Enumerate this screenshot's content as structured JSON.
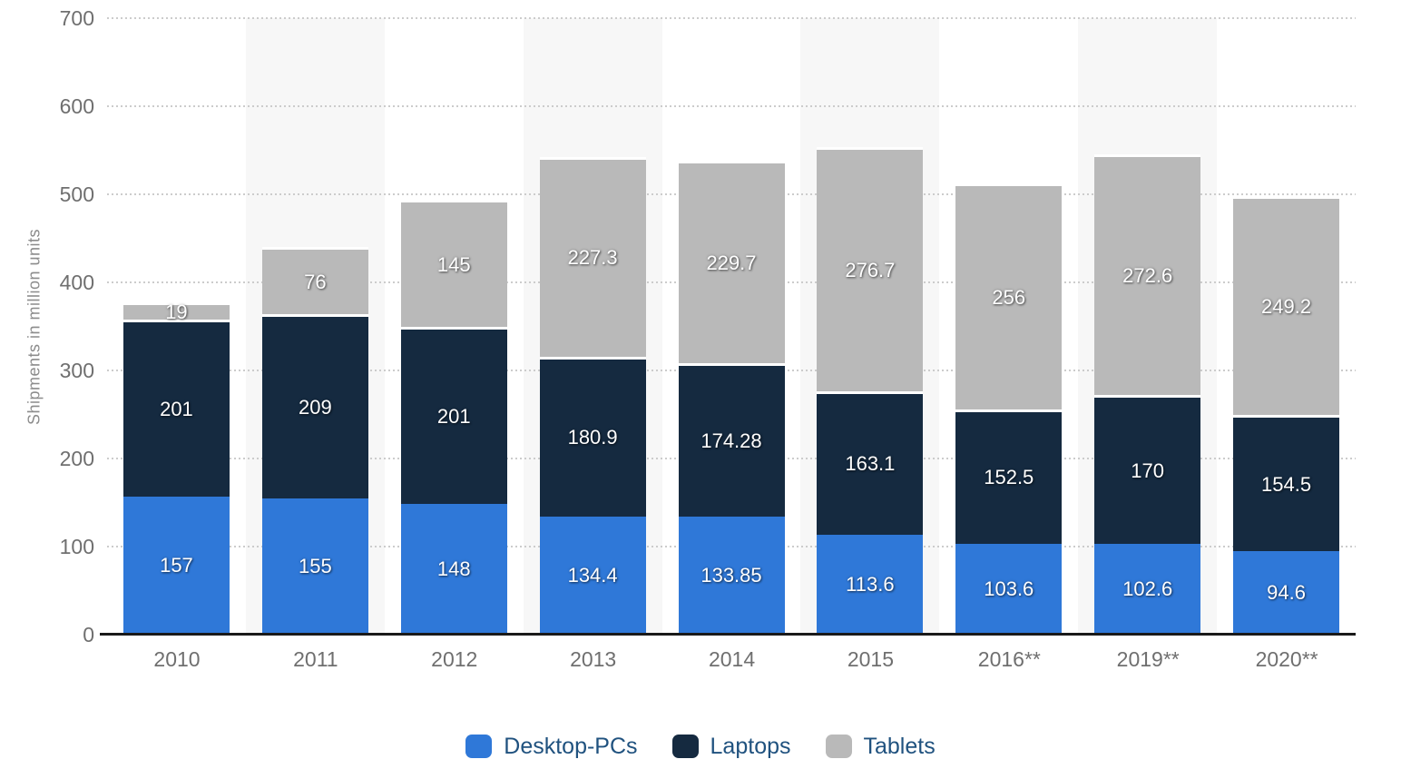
{
  "chart_data": {
    "type": "bar",
    "stacked": true,
    "title": "",
    "xlabel": "",
    "ylabel": "Shipments in million units",
    "ylim": [
      0,
      700
    ],
    "yticks": [
      0,
      100,
      200,
      300,
      400,
      500,
      600,
      700
    ],
    "grid": "horizontal-dotted",
    "legend_position": "bottom",
    "categories": [
      "2010",
      "2011",
      "2012",
      "2013",
      "2014",
      "2015",
      "2016**",
      "2019**",
      "2020**"
    ],
    "banded_category_indexes": [
      1,
      3,
      5,
      7
    ],
    "series": [
      {
        "name": "Desktop-PCs",
        "color": "#2f78d8",
        "values": [
          157,
          155,
          148,
          134.4,
          133.85,
          113.6,
          103.6,
          102.6,
          94.6
        ],
        "labels": [
          "157",
          "155",
          "148",
          "134.4",
          "133.85",
          "113.6",
          "103.6",
          "102.6",
          "94.6"
        ]
      },
      {
        "name": "Laptops",
        "color": "#152a40",
        "values": [
          201,
          209,
          201,
          180.9,
          174.28,
          163.1,
          152.5,
          170,
          154.5
        ],
        "labels": [
          "201",
          "209",
          "201",
          "180.9",
          "174.28",
          "163.1",
          "152.5",
          "170",
          "154.5"
        ]
      },
      {
        "name": "Tablets",
        "color": "#b9b9b9",
        "values": [
          19,
          76,
          145,
          227.3,
          229.7,
          276.7,
          256,
          272.6,
          249.2
        ],
        "labels": [
          "19",
          "76",
          "145",
          "227.3",
          "229.7",
          "276.7",
          "256",
          "272.6",
          "249.2"
        ]
      }
    ]
  },
  "style": {
    "background": "#ffffff",
    "band_color": "#f7f7f7",
    "grid_color": "#cccccc",
    "axis_line_color": "#1a1a1a",
    "tick_label_color": "#6f6f6f",
    "axis_title_color": "#8c8c8c",
    "data_label_color": "#ffffff",
    "legend_text_color": "#20527f"
  }
}
